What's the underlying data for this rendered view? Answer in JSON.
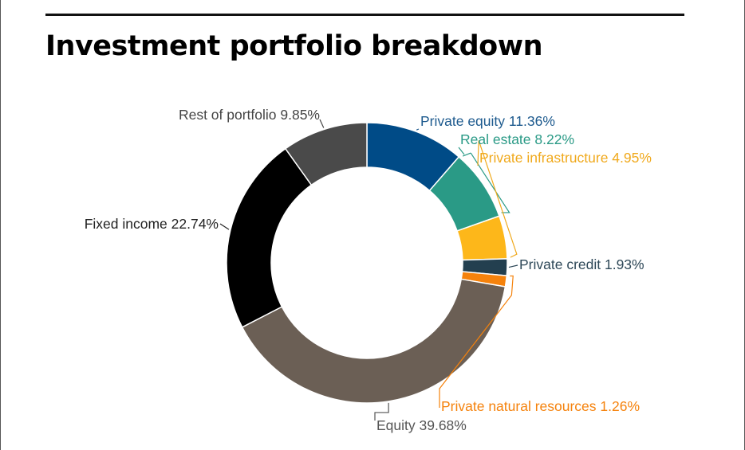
{
  "title": "Investment portfolio breakdown",
  "chart_data": {
    "type": "pie",
    "donut": true,
    "title": "Investment portfolio breakdown",
    "slices": [
      {
        "name": "Private equity",
        "label": "Private equity 11.36%",
        "value": 11.36,
        "color": "#004b87"
      },
      {
        "name": "Real estate",
        "label": "Real estate 8.22%",
        "value": 8.22,
        "color": "#2a9a86"
      },
      {
        "name": "Private infrastructure",
        "label": "Private infrastructure 4.95%",
        "value": 4.95,
        "color": "#fdb71a"
      },
      {
        "name": "Private credit",
        "label": "Private credit  1.93%",
        "value": 1.93,
        "color": "#233f4f"
      },
      {
        "name": "Private natural resources",
        "label": "Private natural resources 1.26%",
        "value": 1.26,
        "color": "#f5820c"
      },
      {
        "name": "Equity",
        "label": "Equity 39.68%",
        "value": 39.68,
        "color": "#6b5f55"
      },
      {
        "name": "Fixed income",
        "label": "Fixed income 22.74%",
        "value": 22.74,
        "color": "#000000"
      },
      {
        "name": "Rest of portfolio",
        "label": "Rest of portfolio 9.85%",
        "value": 9.85,
        "color": "#4a4a4a"
      }
    ],
    "label_colors": {
      "Private equity": "#1d5a8e",
      "Real estate": "#2a9a86",
      "Private infrastructure": "#f0a91c",
      "Private credit": "#2e4858",
      "Private natural resources": "#f5820c",
      "Equity": "#555555",
      "Fixed income": "#222222",
      "Rest of portfolio": "#444444"
    }
  }
}
